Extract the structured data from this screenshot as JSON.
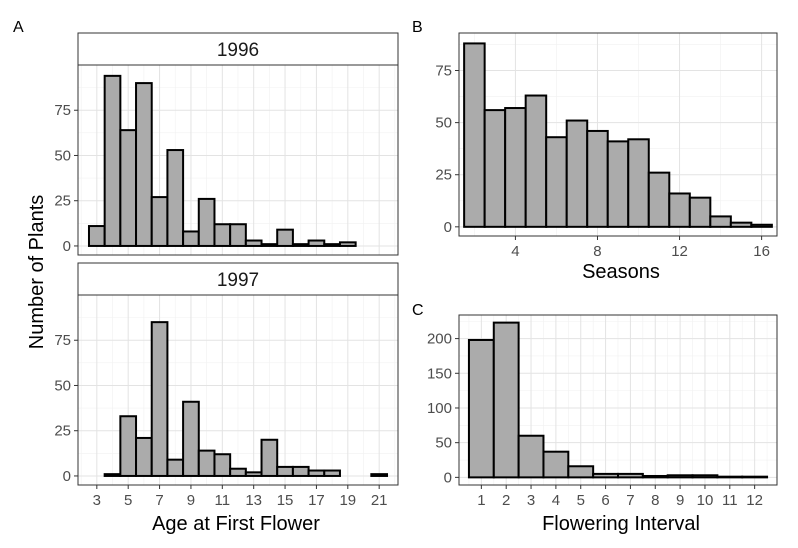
{
  "figure": {
    "panel_labels": [
      "A",
      "B",
      "C"
    ],
    "ylabel": "Number of Plants"
  },
  "chart_data": [
    {
      "id": "A-1996",
      "type": "bar",
      "facet": "1996",
      "xlabel": "Age at First Flower",
      "ylabel": "Number of Plants",
      "x": [
        3,
        4,
        5,
        6,
        7,
        8,
        9,
        10,
        11,
        12,
        13,
        14,
        15,
        16,
        17,
        18,
        19
      ],
      "values": [
        11,
        94,
        64,
        90,
        27,
        53,
        8,
        26,
        12,
        12,
        3,
        1,
        9,
        1,
        3,
        1,
        2
      ],
      "xlim": [
        1.8,
        22.2
      ],
      "ylim": [
        -5,
        100
      ],
      "xticks": [
        3,
        5,
        7,
        9,
        11,
        13,
        15,
        17,
        19,
        21
      ],
      "yticks": [
        0,
        25,
        50,
        75
      ],
      "fill": "#ababab",
      "grid": true
    },
    {
      "id": "A-1997",
      "type": "bar",
      "facet": "1997",
      "xlabel": "Age at First Flower",
      "ylabel": "Number of Plants",
      "x": [
        4,
        5,
        6,
        7,
        8,
        9,
        10,
        11,
        12,
        13,
        14,
        15,
        16,
        17,
        18,
        21
      ],
      "values": [
        1,
        33,
        21,
        85,
        9,
        41,
        14,
        12,
        4,
        2,
        20,
        5,
        5,
        3,
        3,
        1
      ],
      "xlim": [
        1.8,
        22.2
      ],
      "ylim": [
        -5,
        100
      ],
      "xticks": [
        3,
        5,
        7,
        9,
        11,
        13,
        15,
        17,
        19,
        21
      ],
      "yticks": [
        0,
        25,
        50,
        75
      ],
      "fill": "#ababab",
      "grid": true
    },
    {
      "id": "B",
      "type": "bar",
      "xlabel": "Seasons",
      "ylabel": "",
      "x": [
        2,
        3,
        4,
        5,
        6,
        7,
        8,
        9,
        10,
        11,
        12,
        13,
        14,
        15,
        16
      ],
      "values": [
        88,
        56,
        57,
        63,
        43,
        51,
        46,
        41,
        42,
        26,
        16,
        14,
        5,
        2,
        1
      ],
      "xlim": [
        1.25,
        16.75
      ],
      "ylim": [
        -4.4,
        93
      ],
      "xticks": [
        4,
        8,
        12,
        16
      ],
      "yticks": [
        0,
        25,
        50,
        75
      ],
      "fill": "#ababab",
      "grid": true
    },
    {
      "id": "C",
      "type": "bar",
      "xlabel": "Flowering Interval",
      "ylabel": "",
      "x": [
        1,
        2,
        3,
        4,
        5,
        6,
        7,
        8,
        9,
        10,
        11,
        12
      ],
      "values": [
        198,
        223,
        60,
        37,
        16,
        5,
        5,
        2,
        3,
        3,
        1,
        1
      ],
      "xlim": [
        0.1,
        12.9
      ],
      "ylim": [
        -11,
        234
      ],
      "xticks": [
        1,
        2,
        3,
        4,
        5,
        6,
        7,
        8,
        9,
        10,
        11,
        12
      ],
      "yticks": [
        0,
        50,
        100,
        150,
        200
      ],
      "fill": "#ababab",
      "grid": true
    }
  ]
}
